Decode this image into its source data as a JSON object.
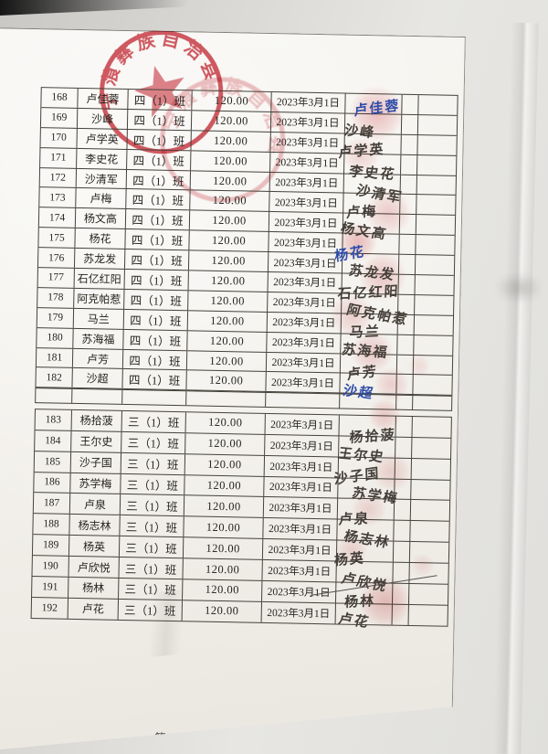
{
  "document": {
    "footer": "第 6 页，共 6 页"
  },
  "stamp": {
    "arc_text": "宁蒗彝族自治县",
    "color": "#c93540"
  },
  "inks": {
    "dark": "#443f38",
    "blue": "#2e4ca8",
    "fingerprint_red": "#d04348"
  },
  "table": {
    "sections": [
      {
        "class_label": "四（1）班",
        "blank_row": true,
        "rows": [
          {
            "no": "168",
            "name": "卢佳蓉",
            "cls": "四（1）班",
            "amount": "120.00",
            "date": "2023年3月1日",
            "sign": "卢佳蓉",
            "ink": "blue"
          },
          {
            "no": "169",
            "name": "沙峰",
            "cls": "四（1）班",
            "amount": "120.00",
            "date": "2023年3月1日",
            "sign": "沙峰",
            "ink": "dark"
          },
          {
            "no": "170",
            "name": "卢学英",
            "cls": "四（1）班",
            "amount": "120.00",
            "date": "2023年3月1日",
            "sign": "卢学英",
            "ink": "dark"
          },
          {
            "no": "171",
            "name": "李史花",
            "cls": "四（1）班",
            "amount": "120.00",
            "date": "2023年3月1日",
            "sign": "李史花",
            "ink": "dark"
          },
          {
            "no": "172",
            "name": "沙清军",
            "cls": "四（1）班",
            "amount": "120.00",
            "date": "2023年3月1日",
            "sign": "沙清军",
            "ink": "dark"
          },
          {
            "no": "173",
            "name": "卢梅",
            "cls": "四（1）班",
            "amount": "120.00",
            "date": "2023年3月1日",
            "sign": "卢梅",
            "ink": "dark"
          },
          {
            "no": "174",
            "name": "杨文高",
            "cls": "四（1）班",
            "amount": "120.00",
            "date": "2023年3月1日",
            "sign": "杨文高",
            "ink": "dark"
          },
          {
            "no": "175",
            "name": "杨花",
            "cls": "四（1）班",
            "amount": "120.00",
            "date": "2023年3月1日",
            "sign": "杨花",
            "ink": "blue"
          },
          {
            "no": "176",
            "name": "苏龙发",
            "cls": "四（1）班",
            "amount": "120.00",
            "date": "2023年3月1日",
            "sign": "苏龙发",
            "ink": "dark"
          },
          {
            "no": "177",
            "name": "石亿红阳",
            "cls": "四（1）班",
            "amount": "120.00",
            "date": "2023年3月1日",
            "sign": "石亿红阳",
            "ink": "dark"
          },
          {
            "no": "178",
            "name": "阿克帕惹",
            "cls": "四（1）班",
            "amount": "120.00",
            "date": "2023年3月1日",
            "sign": "阿克帕惹",
            "ink": "dark"
          },
          {
            "no": "179",
            "name": "马兰",
            "cls": "四（1）班",
            "amount": "120.00",
            "date": "2023年3月1日",
            "sign": "马兰",
            "ink": "dark"
          },
          {
            "no": "180",
            "name": "苏海福",
            "cls": "四（1）班",
            "amount": "120.00",
            "date": "2023年3月1日",
            "sign": "苏海福",
            "ink": "dark"
          },
          {
            "no": "181",
            "name": "卢芳",
            "cls": "四（1）班",
            "amount": "120.00",
            "date": "2023年3月1日",
            "sign": "卢芳",
            "ink": "dark"
          },
          {
            "no": "182",
            "name": "沙超",
            "cls": "四（1）班",
            "amount": "120.00",
            "date": "2023年3月1日",
            "sign": "沙超",
            "ink": "blue"
          }
        ]
      },
      {
        "class_label": "三（1）班",
        "blank_row": false,
        "rows": [
          {
            "no": "183",
            "name": "杨拾菠",
            "cls": "三（1）班",
            "amount": "120.00",
            "date": "2023年3月1日",
            "sign": "杨拾菠",
            "ink": "dark"
          },
          {
            "no": "184",
            "name": "王尔史",
            "cls": "三（1）班",
            "amount": "120.00",
            "date": "2023年3月1日",
            "sign": "王尔史",
            "ink": "dark"
          },
          {
            "no": "185",
            "name": "沙子国",
            "cls": "三（1）班",
            "amount": "120.00",
            "date": "2023年3月1日",
            "sign": "沙子国",
            "ink": "dark"
          },
          {
            "no": "186",
            "name": "苏学梅",
            "cls": "三（1）班",
            "amount": "120.00",
            "date": "2023年3月1日",
            "sign": "苏学梅",
            "ink": "dark"
          },
          {
            "no": "187",
            "name": "卢泉",
            "cls": "三（1）班",
            "amount": "120.00",
            "date": "2023年3月1日",
            "sign": "卢泉",
            "ink": "dark"
          },
          {
            "no": "188",
            "name": "杨志林",
            "cls": "三（1）班",
            "amount": "120.00",
            "date": "2023年3月1日",
            "sign": "杨志林",
            "ink": "dark"
          },
          {
            "no": "189",
            "name": "杨英",
            "cls": "三（1）班",
            "amount": "120.00",
            "date": "2023年3月1日",
            "sign": "杨英",
            "ink": "dark"
          },
          {
            "no": "190",
            "name": "卢欣悦",
            "cls": "三（1）班",
            "amount": "120.00",
            "date": "2023年3月1日",
            "sign": "卢欣悦",
            "ink": "dark"
          },
          {
            "no": "191",
            "name": "杨林",
            "cls": "三（1）班",
            "amount": "120.00",
            "date": "2023年3月1日",
            "sign": "杨林",
            "ink": "dark"
          },
          {
            "no": "192",
            "name": "卢花",
            "cls": "三（1）班",
            "amount": "120.00",
            "date": "2023年3月1日",
            "sign": "卢花",
            "ink": "dark"
          }
        ]
      }
    ]
  }
}
